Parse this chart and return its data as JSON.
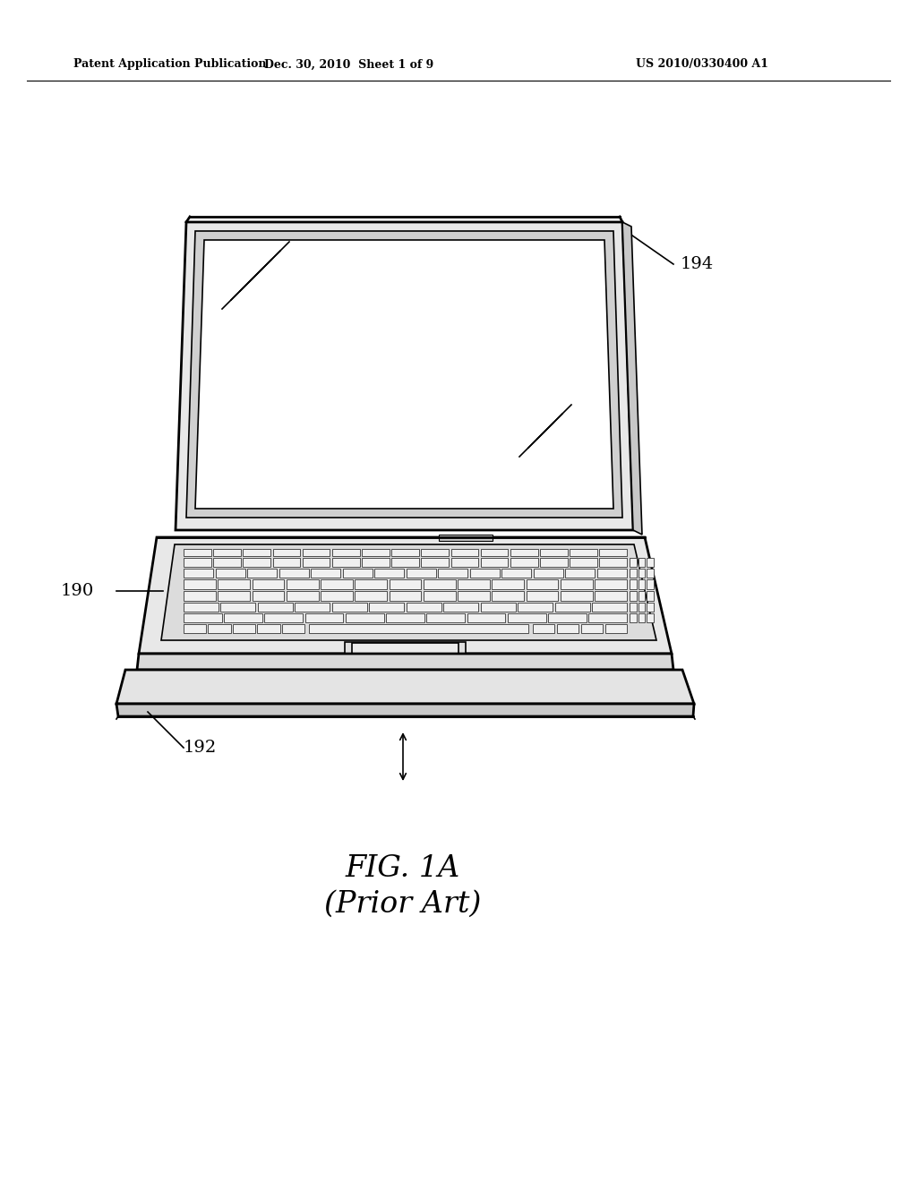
{
  "header_left": "Patent Application Publication",
  "header_center": "Dec. 30, 2010  Sheet 1 of 9",
  "header_right": "US 2010/0330400 A1",
  "fig_label": "FIG. 1A",
  "fig_sublabel": "(Prior Art)",
  "label_190": "190",
  "label_192": "192",
  "label_194": "194",
  "bg_color": "#ffffff",
  "line_color": "#000000"
}
